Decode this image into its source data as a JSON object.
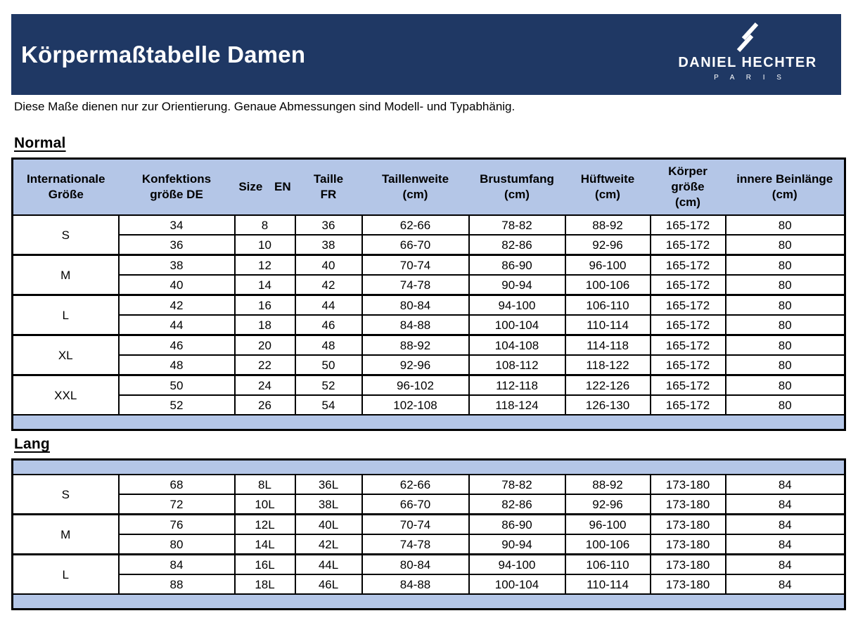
{
  "page": {
    "title": "Körpermaßtabelle Damen",
    "subtitle": "Diese Maße dienen nur zur Orientierung. Genaue Abmessungen sind Modell- und Typabhänig.",
    "logo": {
      "brand": "DANIEL HECHTER",
      "city": "P A R I S",
      "mark": "double-slash-icon"
    }
  },
  "colors": {
    "banner_navy": "#1f3864",
    "table_band_blue": "#b4c6e7",
    "border_black": "#000000",
    "title_white": "#ffffff"
  },
  "column_headers": [
    {
      "lines": [
        "Internationale",
        "Größe"
      ]
    },
    {
      "lines": [
        "Konfektions",
        "größe DE"
      ]
    },
    {
      "lines": [
        "Size EN"
      ]
    },
    {
      "lines": [
        "Taille",
        "FR"
      ]
    },
    {
      "lines": [
        "Taillenweite",
        "(cm)"
      ]
    },
    {
      "lines": [
        "Brustumfang",
        "(cm)"
      ]
    },
    {
      "lines": [
        "Hüftweite",
        "(cm)"
      ]
    },
    {
      "lines": [
        "Körper",
        "größe",
        "(cm)"
      ]
    },
    {
      "lines": [
        "innere Beinlänge",
        "(cm)"
      ]
    }
  ],
  "sections": {
    "normal": {
      "heading": "Normal",
      "groups": [
        {
          "size": "S",
          "rows": [
            [
              "34",
              "8",
              "36",
              "62-66",
              "78-82",
              "88-92",
              "165-172",
              "80"
            ],
            [
              "36",
              "10",
              "38",
              "66-70",
              "82-86",
              "92-96",
              "165-172",
              "80"
            ]
          ]
        },
        {
          "size": "M",
          "rows": [
            [
              "38",
              "12",
              "40",
              "70-74",
              "86-90",
              "96-100",
              "165-172",
              "80"
            ],
            [
              "40",
              "14",
              "42",
              "74-78",
              "90-94",
              "100-106",
              "165-172",
              "80"
            ]
          ]
        },
        {
          "size": "L",
          "rows": [
            [
              "42",
              "16",
              "44",
              "80-84",
              "94-100",
              "106-110",
              "165-172",
              "80"
            ],
            [
              "44",
              "18",
              "46",
              "84-88",
              "100-104",
              "110-114",
              "165-172",
              "80"
            ]
          ]
        },
        {
          "size": "XL",
          "rows": [
            [
              "46",
              "20",
              "48",
              "88-92",
              "104-108",
              "114-118",
              "165-172",
              "80"
            ],
            [
              "48",
              "22",
              "50",
              "92-96",
              "108-112",
              "118-122",
              "165-172",
              "80"
            ]
          ]
        },
        {
          "size": "XXL",
          "rows": [
            [
              "50",
              "24",
              "52",
              "96-102",
              "112-118",
              "122-126",
              "165-172",
              "80"
            ],
            [
              "52",
              "26",
              "54",
              "102-108",
              "118-124",
              "126-130",
              "165-172",
              "80"
            ]
          ]
        }
      ]
    },
    "lang": {
      "heading": "Lang",
      "groups": [
        {
          "size": "S",
          "rows": [
            [
              "68",
              "8L",
              "36L",
              "62-66",
              "78-82",
              "88-92",
              "173-180",
              "84"
            ],
            [
              "72",
              "10L",
              "38L",
              "66-70",
              "82-86",
              "92-96",
              "173-180",
              "84"
            ]
          ]
        },
        {
          "size": "M",
          "rows": [
            [
              "76",
              "12L",
              "40L",
              "70-74",
              "86-90",
              "96-100",
              "173-180",
              "84"
            ],
            [
              "80",
              "14L",
              "42L",
              "74-78",
              "90-94",
              "100-106",
              "173-180",
              "84"
            ]
          ]
        },
        {
          "size": "L",
          "rows": [
            [
              "84",
              "16L",
              "44L",
              "80-84",
              "94-100",
              "106-110",
              "173-180",
              "84"
            ],
            [
              "88",
              "18L",
              "46L",
              "84-88",
              "100-104",
              "110-114",
              "173-180",
              "84"
            ]
          ]
        }
      ]
    }
  }
}
